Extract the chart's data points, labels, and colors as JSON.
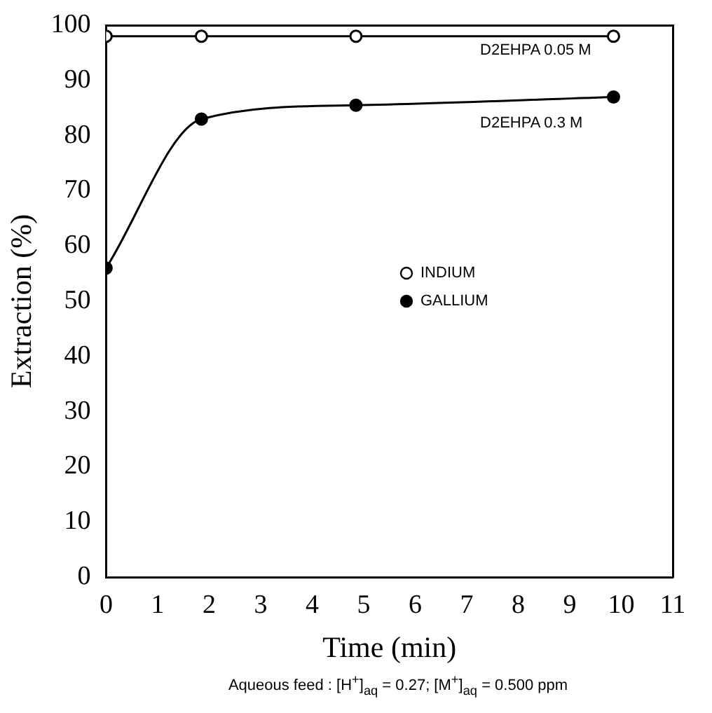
{
  "chart_data": {
    "type": "line",
    "xlabel": "Time (min)",
    "ylabel": "Extraction (%)",
    "xlim": [
      0,
      11
    ],
    "xticks": [
      0,
      1,
      2,
      3,
      4,
      5,
      6,
      7,
      8,
      9,
      10,
      11
    ],
    "ylim": [
      0,
      100
    ],
    "yticks": [
      0,
      10,
      20,
      30,
      40,
      50,
      60,
      70,
      80,
      90,
      100
    ],
    "grid": false,
    "legend": "right",
    "series": [
      {
        "name": "INDIUM",
        "color": "#000000",
        "marker": "circle",
        "x": [
          0,
          1.85,
          4.85,
          9.85
        ],
        "values": [
          98,
          98,
          98,
          98
        ]
      },
      {
        "name": "GALLIUM",
        "color": "#000000",
        "marker": "circle",
        "x": [
          0,
          1.85,
          4.85,
          9.85
        ],
        "values": [
          56,
          83,
          85.5,
          87
        ]
      }
    ],
    "annotations": [
      "D2EHPA 0.05 M",
      "D2EHPA 0.3 M",
      "Aqueous feed : [H$^{+}$]$_{aq}$ = 0.27; [M$^{+}$]$_{aq}$ = 0.500 ppm"
    ]
  }
}
